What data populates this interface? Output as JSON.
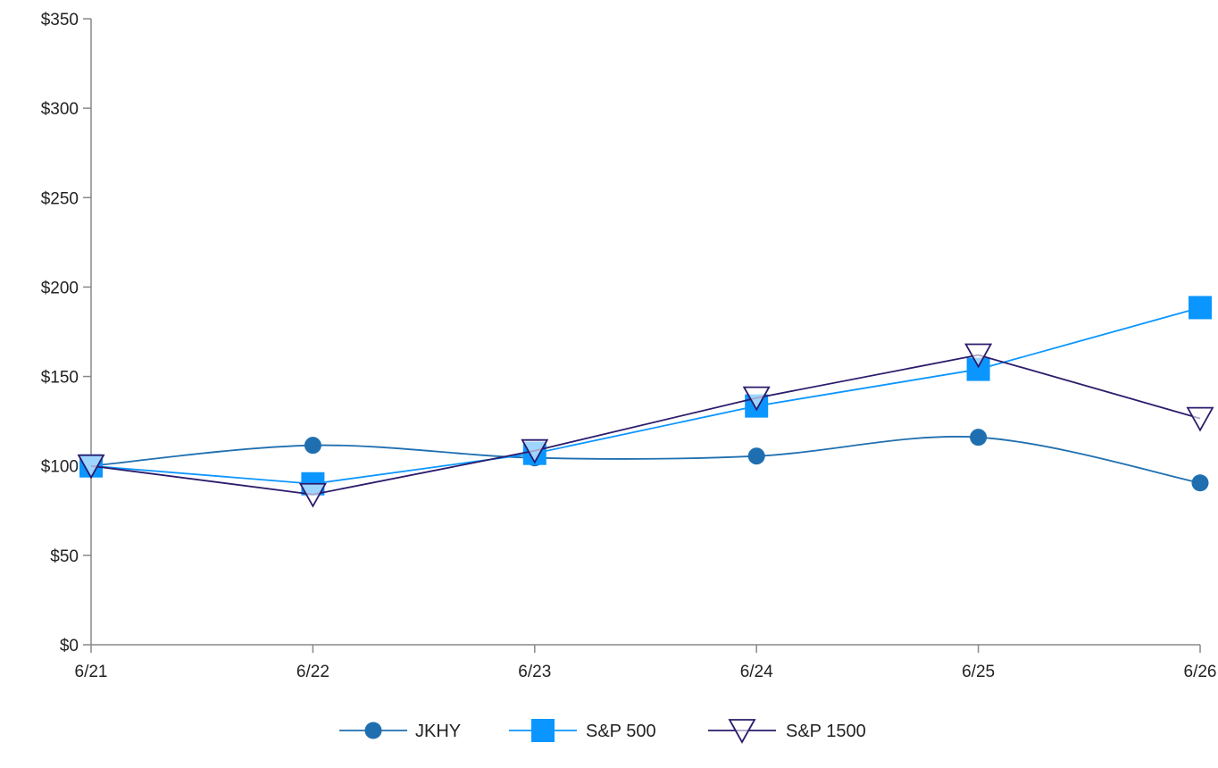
{
  "chart_data": {
    "type": "line",
    "title": "",
    "xlabel": "",
    "ylabel": "",
    "categories": [
      "6/21",
      "6/22",
      "6/23",
      "6/24",
      "6/25",
      "6/26"
    ],
    "ylim": [
      0,
      350
    ],
    "y_ticks": [
      0,
      50,
      100,
      150,
      200,
      250,
      300,
      350
    ],
    "y_tick_labels": [
      "$0",
      "$50",
      "$100",
      "$150",
      "$200",
      "$250",
      "$300",
      "$350"
    ],
    "grid": false,
    "legend_position": "bottom-center",
    "series": [
      {
        "name": "JKHY",
        "values": [
          100,
          111.5,
          104.5,
          105.5,
          116,
          90.5
        ],
        "color": "#1f6fb0",
        "marker": "circle",
        "smooth": true
      },
      {
        "name": "S&P 500",
        "values": [
          100,
          90,
          107,
          133.5,
          154,
          188.5
        ],
        "color": "#0b96ff",
        "marker": "square",
        "smooth": false
      },
      {
        "name": "S&P 1500",
        "values": [
          100,
          84,
          108.5,
          138,
          162,
          126.5
        ],
        "color": "#2d1b6b",
        "marker": "triangle-down-open",
        "smooth": false
      }
    ]
  }
}
